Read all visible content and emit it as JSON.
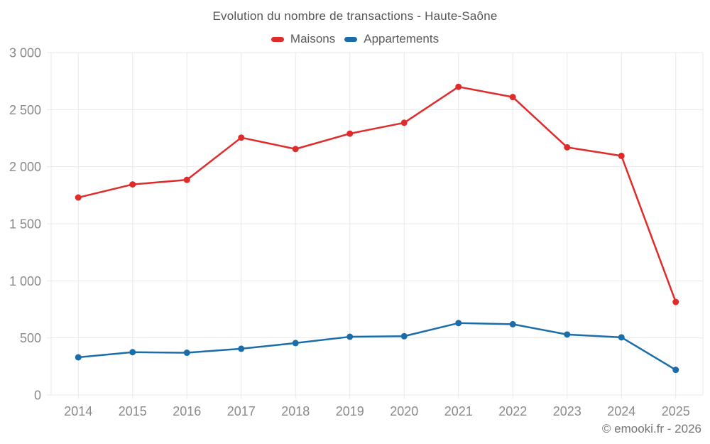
{
  "chart": {
    "footer": "© emooki.fr - 2026"
  },
  "chart_data": {
    "type": "line",
    "title": "Evolution du nombre de transactions - Haute-Saône",
    "categories": [
      "2014",
      "2015",
      "2016",
      "2017",
      "2018",
      "2019",
      "2020",
      "2021",
      "2022",
      "2023",
      "2024",
      "2025"
    ],
    "series": [
      {
        "name": "Maisons",
        "color": "#e02b2b",
        "values": [
          1730,
          1845,
          1885,
          2255,
          2155,
          2290,
          2385,
          2700,
          2610,
          2170,
          2095,
          815
        ]
      },
      {
        "name": "Appartements",
        "color": "#1a6da8",
        "values": [
          330,
          375,
          370,
          405,
          455,
          510,
          515,
          630,
          620,
          530,
          505,
          220
        ]
      }
    ],
    "xlabel": "",
    "ylabel": "",
    "ylim": [
      0,
      3000
    ],
    "y_ticks": [
      {
        "value": 0,
        "label": "0"
      },
      {
        "value": 500,
        "label": "500"
      },
      {
        "value": 1000,
        "label": "1 000"
      },
      {
        "value": 1500,
        "label": "1 500"
      },
      {
        "value": 2000,
        "label": "2 000"
      },
      {
        "value": 2500,
        "label": "2 500"
      },
      {
        "value": 3000,
        "label": "3 000"
      }
    ],
    "grid": true,
    "legend_position": "top",
    "colors": {
      "gridline": "#e8e8e8",
      "tick_label": "#8a8a8a",
      "title_text": "#545454",
      "legend_text": "#5a5a5a",
      "footer_text": "#757575",
      "background": "#ffffff"
    }
  }
}
